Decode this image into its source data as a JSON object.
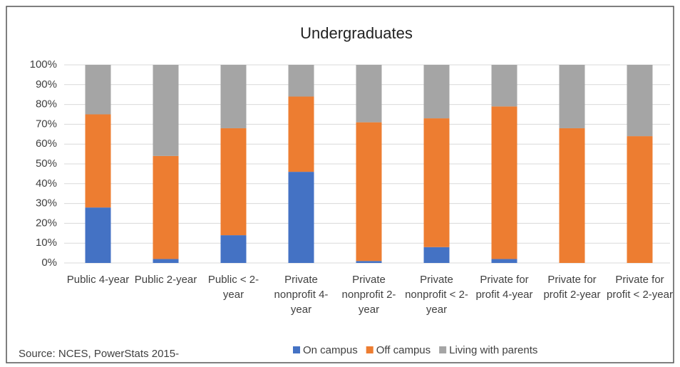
{
  "chart_data": {
    "type": "stacked_bar",
    "title": "Undergraduates",
    "categories": [
      "Public 4-year",
      "Public 2-year",
      "Public < 2-year",
      "Private nonprofit 4-year",
      "Private nonprofit 2-year",
      "Private nonprofit < 2-year",
      "Private for profit 4-year",
      "Private for profit 2-year",
      "Private for profit < 2-year"
    ],
    "series": [
      {
        "name": "On campus",
        "color": "#4472c4",
        "values": [
          28,
          2,
          14,
          46,
          1,
          8,
          2,
          0,
          0
        ]
      },
      {
        "name": "Off campus",
        "color": "#ed7d31",
        "values": [
          47,
          52,
          54,
          38,
          70,
          65,
          77,
          68,
          64
        ]
      },
      {
        "name": "Living with parents",
        "color": "#a5a5a5",
        "values": [
          25,
          46,
          32,
          16,
          29,
          27,
          21,
          32,
          36
        ]
      }
    ],
    "ylim": [
      0,
      100
    ],
    "yticks": [
      {
        "value": 0,
        "label": "0%"
      },
      {
        "value": 10,
        "label": "10%"
      },
      {
        "value": 20,
        "label": "20%"
      },
      {
        "value": 30,
        "label": "30%"
      },
      {
        "value": 40,
        "label": "40%"
      },
      {
        "value": 50,
        "label": "50%"
      },
      {
        "value": 60,
        "label": "60%"
      },
      {
        "value": 70,
        "label": "70%"
      },
      {
        "value": 80,
        "label": "80%"
      },
      {
        "value": 90,
        "label": "90%"
      },
      {
        "value": 100,
        "label": "100%"
      }
    ],
    "grid": true,
    "legend": "bottom",
    "annotation": "Source: NCES, PowerStats 2015-"
  }
}
